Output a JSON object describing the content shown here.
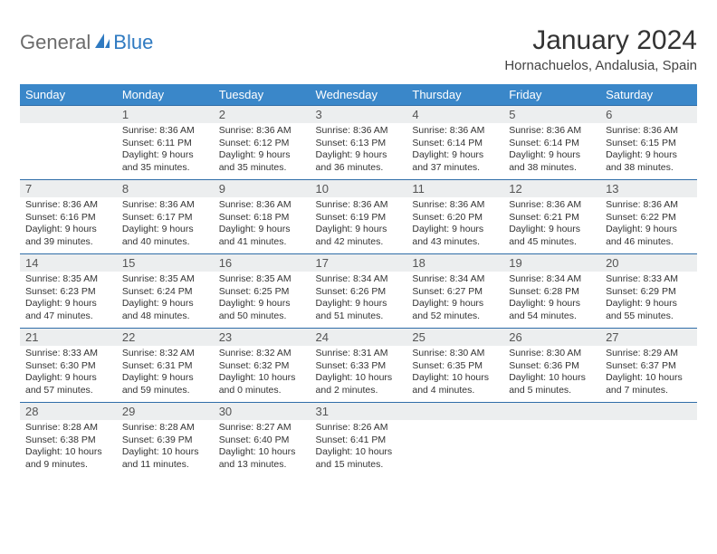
{
  "brand": {
    "text1": "General",
    "text2": "Blue"
  },
  "title": "January 2024",
  "location": "Hornachuelos, Andalusia, Spain",
  "colors": {
    "header_bg": "#3a87c9",
    "header_fg": "#ffffff",
    "row_sep": "#2f6da8",
    "daynum_bg": "#eceeef",
    "brand_gray": "#6b6b6b",
    "brand_blue": "#2f7ac1"
  },
  "weekdays": [
    "Sunday",
    "Monday",
    "Tuesday",
    "Wednesday",
    "Thursday",
    "Friday",
    "Saturday"
  ],
  "weeks": [
    [
      null,
      {
        "n": "1",
        "sr": "8:36 AM",
        "ss": "6:11 PM",
        "dl": "9 hours and 35 minutes."
      },
      {
        "n": "2",
        "sr": "8:36 AM",
        "ss": "6:12 PM",
        "dl": "9 hours and 35 minutes."
      },
      {
        "n": "3",
        "sr": "8:36 AM",
        "ss": "6:13 PM",
        "dl": "9 hours and 36 minutes."
      },
      {
        "n": "4",
        "sr": "8:36 AM",
        "ss": "6:14 PM",
        "dl": "9 hours and 37 minutes."
      },
      {
        "n": "5",
        "sr": "8:36 AM",
        "ss": "6:14 PM",
        "dl": "9 hours and 38 minutes."
      },
      {
        "n": "6",
        "sr": "8:36 AM",
        "ss": "6:15 PM",
        "dl": "9 hours and 38 minutes."
      }
    ],
    [
      {
        "n": "7",
        "sr": "8:36 AM",
        "ss": "6:16 PM",
        "dl": "9 hours and 39 minutes."
      },
      {
        "n": "8",
        "sr": "8:36 AM",
        "ss": "6:17 PM",
        "dl": "9 hours and 40 minutes."
      },
      {
        "n": "9",
        "sr": "8:36 AM",
        "ss": "6:18 PM",
        "dl": "9 hours and 41 minutes."
      },
      {
        "n": "10",
        "sr": "8:36 AM",
        "ss": "6:19 PM",
        "dl": "9 hours and 42 minutes."
      },
      {
        "n": "11",
        "sr": "8:36 AM",
        "ss": "6:20 PM",
        "dl": "9 hours and 43 minutes."
      },
      {
        "n": "12",
        "sr": "8:36 AM",
        "ss": "6:21 PM",
        "dl": "9 hours and 45 minutes."
      },
      {
        "n": "13",
        "sr": "8:36 AM",
        "ss": "6:22 PM",
        "dl": "9 hours and 46 minutes."
      }
    ],
    [
      {
        "n": "14",
        "sr": "8:35 AM",
        "ss": "6:23 PM",
        "dl": "9 hours and 47 minutes."
      },
      {
        "n": "15",
        "sr": "8:35 AM",
        "ss": "6:24 PM",
        "dl": "9 hours and 48 minutes."
      },
      {
        "n": "16",
        "sr": "8:35 AM",
        "ss": "6:25 PM",
        "dl": "9 hours and 50 minutes."
      },
      {
        "n": "17",
        "sr": "8:34 AM",
        "ss": "6:26 PM",
        "dl": "9 hours and 51 minutes."
      },
      {
        "n": "18",
        "sr": "8:34 AM",
        "ss": "6:27 PM",
        "dl": "9 hours and 52 minutes."
      },
      {
        "n": "19",
        "sr": "8:34 AM",
        "ss": "6:28 PM",
        "dl": "9 hours and 54 minutes."
      },
      {
        "n": "20",
        "sr": "8:33 AM",
        "ss": "6:29 PM",
        "dl": "9 hours and 55 minutes."
      }
    ],
    [
      {
        "n": "21",
        "sr": "8:33 AM",
        "ss": "6:30 PM",
        "dl": "9 hours and 57 minutes."
      },
      {
        "n": "22",
        "sr": "8:32 AM",
        "ss": "6:31 PM",
        "dl": "9 hours and 59 minutes."
      },
      {
        "n": "23",
        "sr": "8:32 AM",
        "ss": "6:32 PM",
        "dl": "10 hours and 0 minutes."
      },
      {
        "n": "24",
        "sr": "8:31 AM",
        "ss": "6:33 PM",
        "dl": "10 hours and 2 minutes."
      },
      {
        "n": "25",
        "sr": "8:30 AM",
        "ss": "6:35 PM",
        "dl": "10 hours and 4 minutes."
      },
      {
        "n": "26",
        "sr": "8:30 AM",
        "ss": "6:36 PM",
        "dl": "10 hours and 5 minutes."
      },
      {
        "n": "27",
        "sr": "8:29 AM",
        "ss": "6:37 PM",
        "dl": "10 hours and 7 minutes."
      }
    ],
    [
      {
        "n": "28",
        "sr": "8:28 AM",
        "ss": "6:38 PM",
        "dl": "10 hours and 9 minutes."
      },
      {
        "n": "29",
        "sr": "8:28 AM",
        "ss": "6:39 PM",
        "dl": "10 hours and 11 minutes."
      },
      {
        "n": "30",
        "sr": "8:27 AM",
        "ss": "6:40 PM",
        "dl": "10 hours and 13 minutes."
      },
      {
        "n": "31",
        "sr": "8:26 AM",
        "ss": "6:41 PM",
        "dl": "10 hours and 15 minutes."
      },
      null,
      null,
      null
    ]
  ],
  "labels": {
    "sunrise": "Sunrise:",
    "sunset": "Sunset:",
    "daylight": "Daylight:"
  }
}
